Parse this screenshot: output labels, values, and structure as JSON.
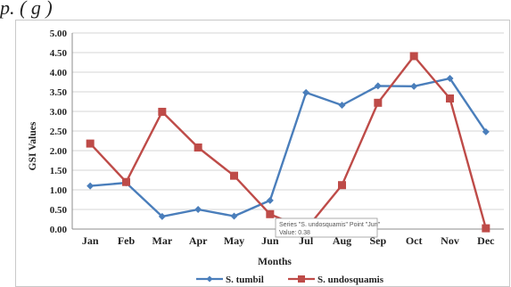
{
  "caption": "p.                          ( g )",
  "chart_data": {
    "type": "line",
    "categories": [
      "Jan",
      "Feb",
      "Mar",
      "Apr",
      "May",
      "Jun",
      "Jul",
      "Aug",
      "Sep",
      "Oct",
      "Nov",
      "Dec"
    ],
    "series": [
      {
        "name": "S. tumbil",
        "color": "#4a7ebb",
        "marker": "diamond",
        "values": [
          1.1,
          1.18,
          0.32,
          0.5,
          0.33,
          0.73,
          3.48,
          3.16,
          3.65,
          3.64,
          3.84,
          2.48
        ]
      },
      {
        "name": "S. undosquamis",
        "color": "#be4b48",
        "marker": "square",
        "values": [
          2.18,
          1.2,
          2.99,
          2.08,
          1.36,
          0.38,
          0.0,
          1.12,
          3.22,
          4.41,
          3.33,
          0.02
        ]
      }
    ],
    "xlabel": "Months",
    "ylabel": "GSI Values",
    "ylim": [
      0,
      5
    ],
    "yticks": [
      "0.00",
      "0.50",
      "1.00",
      "1.50",
      "2.00",
      "2.50",
      "3.00",
      "3.50",
      "4.00",
      "4.50",
      "5.00"
    ],
    "grid": true,
    "legend": "bottom",
    "tooltip": {
      "line1": "Series \"S. undosquamis\" Point \"Jun\"",
      "line2": "Value: 0.38"
    }
  }
}
